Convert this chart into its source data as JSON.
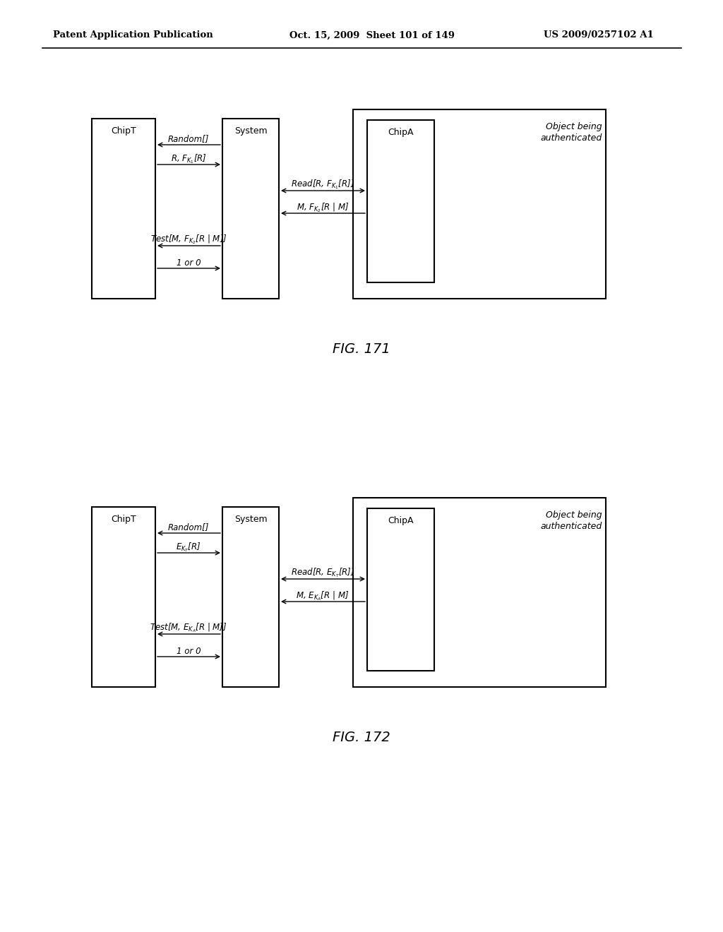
{
  "header_left": "Patent Application Publication",
  "header_mid": "Oct. 15, 2009  Sheet 101 of 149",
  "header_right": "US 2009/0257102 A1",
  "fig1_label": "FIG. 171",
  "fig2_label": "FIG. 172",
  "bg_color": "#ffffff"
}
